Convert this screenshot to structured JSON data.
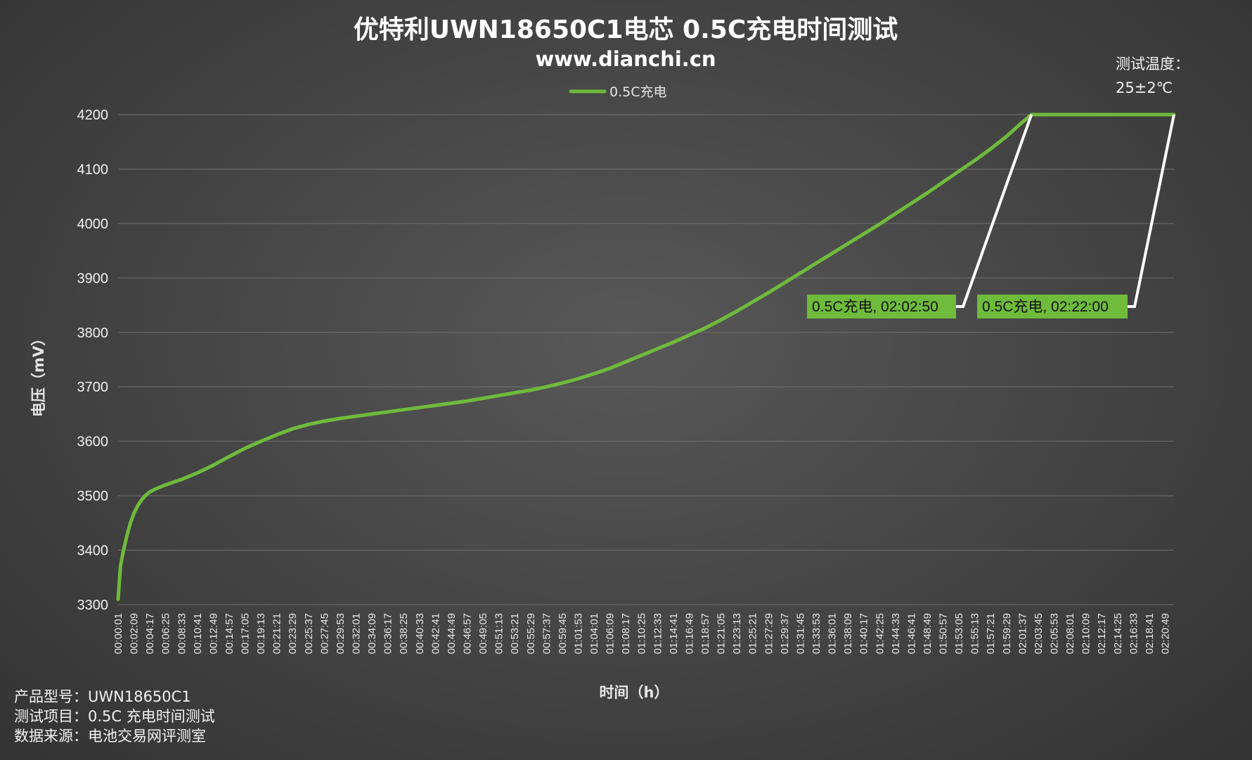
{
  "title": "优特利UWN18650C1电芯 0.5C充电时间测试",
  "subtitle": "www.dianchi.cn",
  "test_temp_label": "测试温度：",
  "test_temp_value": "25±2℃",
  "info": {
    "model": "产品型号：UWN18650C1",
    "item": "测试项目：0.5C 充电时间测试",
    "source": "数据来源：电池交易网评测室"
  },
  "colors": {
    "series": "#6fbb3c",
    "annotation_bg": "#6fbb3c",
    "leader": "#ffffff"
  },
  "chart_data": {
    "type": "line",
    "xlabel": "时间（h）",
    "ylabel": "电压（mV）",
    "ylim": [
      3300,
      4200
    ],
    "yticks": [
      3300,
      3400,
      3500,
      3600,
      3700,
      3800,
      3900,
      4000,
      4100,
      4200
    ],
    "grid": true,
    "legend_position": "top-center",
    "x_ticks": [
      "00:00:01",
      "00:02:09",
      "00:04:17",
      "00:06:25",
      "00:08:33",
      "00:10:41",
      "00:12:49",
      "00:14:57",
      "00:17:05",
      "00:19:13",
      "00:21:21",
      "00:23:29",
      "00:25:37",
      "00:27:45",
      "00:29:53",
      "00:32:01",
      "00:34:09",
      "00:36:17",
      "00:38:25",
      "00:40:33",
      "00:42:41",
      "00:44:49",
      "00:46:57",
      "00:49:05",
      "00:51:13",
      "00:53:21",
      "00:55:29",
      "00:57:37",
      "00:59:45",
      "01:01:53",
      "01:04:01",
      "01:06:09",
      "01:08:17",
      "01:10:25",
      "01:12:33",
      "01:14:41",
      "01:16:49",
      "01:18:57",
      "01:21:05",
      "01:23:13",
      "01:25:21",
      "01:27:29",
      "01:29:37",
      "01:31:45",
      "01:33:53",
      "01:36:01",
      "01:38:09",
      "01:40:17",
      "01:42:25",
      "01:44:33",
      "01:46:41",
      "01:48:49",
      "01:50:57",
      "01:53:05",
      "01:55:13",
      "01:57:21",
      "01:59:29",
      "02:01:37",
      "02:03:45",
      "02:05:53",
      "02:08:01",
      "02:10:09",
      "02:12:17",
      "02:14:25",
      "02:16:33",
      "02:18:41",
      "02:20:49"
    ],
    "series": [
      {
        "name": "0.5C充电",
        "x": [
          "00:00:01",
          "00:00:20",
          "00:00:40",
          "00:01:10",
          "00:01:40",
          "00:02:09",
          "00:02:40",
          "00:03:10",
          "00:03:40",
          "00:04:17",
          "00:05:00",
          "00:06:25",
          "00:08:33",
          "00:10:41",
          "00:12:49",
          "00:14:57",
          "00:17:05",
          "00:19:13",
          "00:21:21",
          "00:23:29",
          "00:25:37",
          "00:27:45",
          "00:29:53",
          "00:32:01",
          "00:34:09",
          "00:36:17",
          "00:38:25",
          "00:40:33",
          "00:42:41",
          "00:44:49",
          "00:46:57",
          "00:49:05",
          "00:51:13",
          "00:53:21",
          "00:55:29",
          "00:57:37",
          "00:59:45",
          "01:01:53",
          "01:04:01",
          "01:06:09",
          "01:08:17",
          "01:10:25",
          "01:12:33",
          "01:14:41",
          "01:16:49",
          "01:18:57",
          "01:21:05",
          "01:23:13",
          "01:25:21",
          "01:27:29",
          "01:29:37",
          "01:31:45",
          "01:33:53",
          "01:36:01",
          "01:38:09",
          "01:40:17",
          "01:42:25",
          "01:44:33",
          "01:46:41",
          "01:48:49",
          "01:50:57",
          "01:53:05",
          "01:55:13",
          "01:57:21",
          "01:59:29",
          "02:01:37",
          "02:02:50",
          "02:05:53",
          "02:10:09",
          "02:14:25",
          "02:18:41",
          "02:22:00"
        ],
        "y": [
          3310,
          3370,
          3395,
          3425,
          3450,
          3468,
          3482,
          3492,
          3500,
          3507,
          3512,
          3520,
          3530,
          3542,
          3556,
          3572,
          3587,
          3600,
          3612,
          3623,
          3631,
          3637,
          3642,
          3646,
          3650,
          3654,
          3658,
          3662,
          3666,
          3670,
          3674,
          3679,
          3684,
          3689,
          3694,
          3700,
          3707,
          3715,
          3724,
          3734,
          3746,
          3758,
          3770,
          3782,
          3795,
          3808,
          3823,
          3839,
          3856,
          3873,
          3891,
          3909,
          3927,
          3945,
          3963,
          3981,
          3999,
          4018,
          4037,
          4056,
          4076,
          4096,
          4116,
          4137,
          4160,
          4186,
          4200,
          4200,
          4200,
          4200,
          4200,
          4200
        ]
      }
    ],
    "annotations": [
      {
        "label": "0.5C充电, 02:02:50",
        "time": "02:02:50",
        "value": 4200
      },
      {
        "label": "0.5C充电, 02:22:00",
        "time": "02:22:00",
        "value": 4200
      }
    ]
  }
}
